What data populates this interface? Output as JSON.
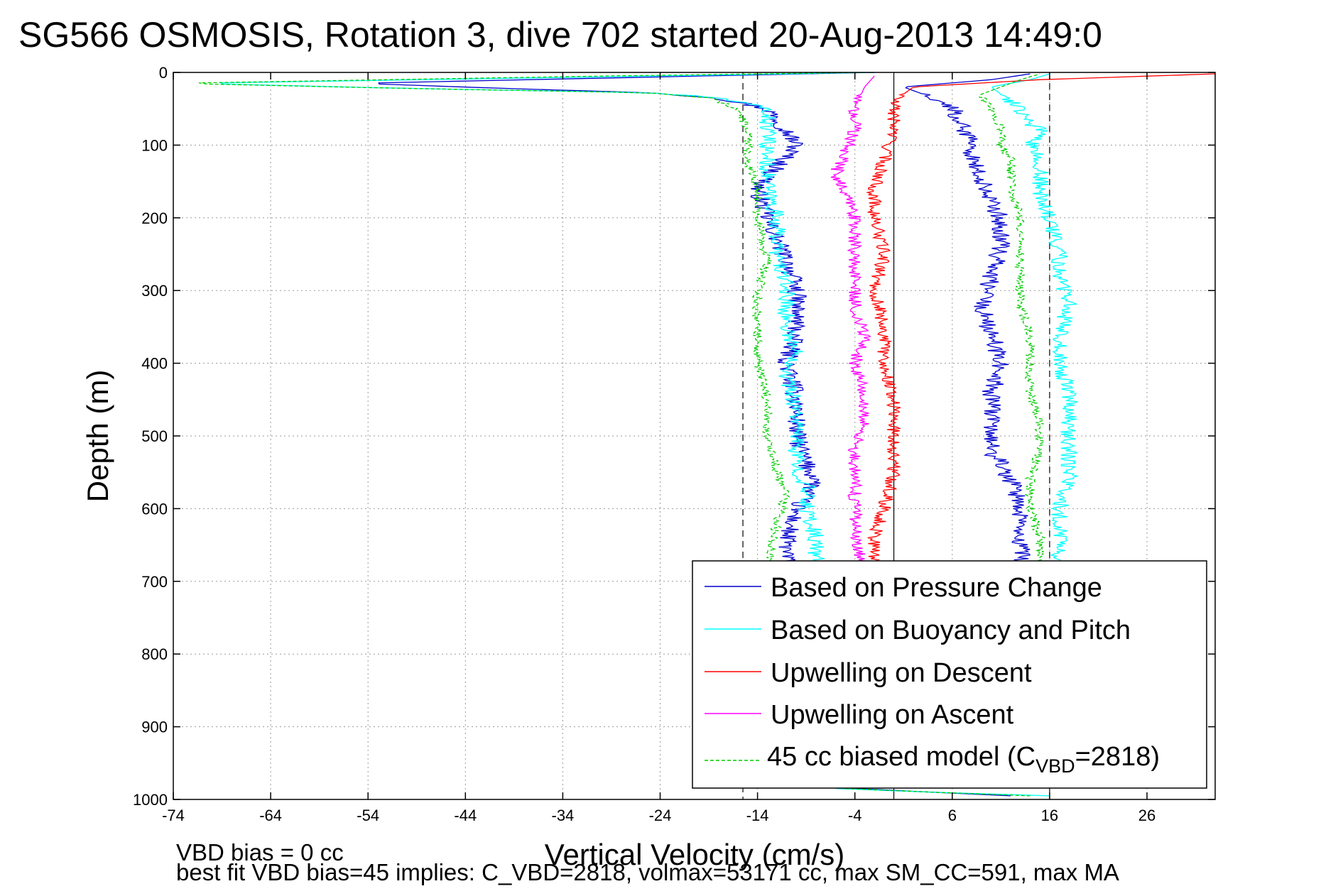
{
  "chart_data": {
    "type": "line",
    "title": "SG566 OSMOSIS, Rotation 3, dive 702 started 20-Aug-2013 14:49:0",
    "xlabel": "Vertical Velocity (cm/s)",
    "ylabel": "Depth (m)",
    "xlim": [
      -74,
      33
    ],
    "ylim": [
      0,
      1000
    ],
    "y_reversed": true,
    "grid": true,
    "x_ticks": [
      -74,
      -64,
      -54,
      -44,
      -34,
      -24,
      -14,
      -4,
      6,
      16,
      26
    ],
    "y_ticks": [
      0,
      100,
      200,
      300,
      400,
      500,
      600,
      700,
      800,
      900,
      1000
    ],
    "vertical_reference_lines": [
      {
        "x": -15.5,
        "style": "dashed"
      },
      {
        "x": 0,
        "style": "solid"
      },
      {
        "x": 16,
        "style": "dashed"
      }
    ],
    "legend_position": "bottom-right",
    "series": [
      {
        "name": "Based on Pressure Change",
        "color": "#0000cc",
        "style": "solid",
        "noise": 1.0,
        "segments": [
          {
            "depth": [
              0,
              5,
              15,
              22,
              28,
              35,
              50,
              80,
              100,
              130,
              160,
              200,
              260,
              300,
              350,
              400,
              450,
              500,
              540,
              560,
              600,
              640,
              680
            ],
            "x": [
              -2,
              -20,
              -55,
              -40,
              -25,
              -18,
              -13,
              -11,
              -10,
              -12,
              -14,
              -13,
              -11,
              -10,
              -10,
              -11,
              -10,
              -10,
              -9,
              -8,
              -10,
              -11,
              -11
            ]
          },
          {
            "depth": [
              680,
              640,
              600,
              560,
              520,
              480,
              440,
              400,
              360,
              320,
              280,
              240,
              200,
              180,
              150,
              120,
              100,
              70,
              50,
              30,
              20,
              10,
              2
            ],
            "x": [
              13,
              13,
              13,
              12,
              10,
              10,
              10,
              11,
              10,
              9,
              10,
              11,
              11,
              10,
              9,
              8,
              8,
              7,
              6,
              3,
              1,
              10,
              14
            ]
          },
          {
            "depth": [
              985,
              990,
              995
            ],
            "x": [
              -4,
              4,
              12
            ]
          }
        ]
      },
      {
        "name": "Based on Buoyancy and Pitch",
        "color": "#00ffff",
        "style": "solid",
        "noise": 0.9,
        "segments": [
          {
            "depth": [
              0,
              5,
              15,
              22,
              28,
              35,
              50,
              80,
              100,
              130,
              160,
              200,
              250,
              300,
              350,
              390,
              420,
              460,
              500,
              540,
              570,
              600,
              640,
              680
            ],
            "x": [
              -2,
              -25,
              -72,
              -50,
              -25,
              -18,
              -13,
              -13,
              -13,
              -13,
              -13,
              -12,
              -12,
              -11,
              -11,
              -10,
              -11,
              -10,
              -10,
              -10,
              -9,
              -9,
              -8,
              -8
            ]
          },
          {
            "depth": [
              680,
              640,
              600,
              560,
              520,
              480,
              440,
              400,
              360,
              320,
              280,
              240,
              200,
              160,
              120,
              100,
              80,
              60,
              50,
              30,
              20,
              10,
              2
            ],
            "x": [
              17,
              17,
              17,
              18,
              18,
              18,
              18,
              17,
              17,
              18,
              17,
              17,
              16,
              15,
              15,
              14,
              15,
              13,
              13,
              11,
              10,
              14,
              16
            ]
          },
          {
            "depth": [
              985,
              990,
              995
            ],
            "x": [
              -6,
              4,
              16
            ]
          }
        ]
      },
      {
        "name": "Upwelling on Descent",
        "color": "#ff0000",
        "style": "solid",
        "noise": 0.7,
        "segments": [
          {
            "depth": [
              2,
              10,
              20,
              40,
              80,
              120,
              160,
              200,
              250,
              300,
              350,
              400,
              450,
              500,
              550,
              600,
              640,
              680
            ],
            "x": [
              33,
              15,
              2,
              0,
              0,
              -1,
              -2,
              -2,
              -1,
              -2,
              -1,
              -1,
              0,
              0,
              0,
              -1,
              -2,
              -2
            ]
          }
        ]
      },
      {
        "name": "Upwelling on Ascent",
        "color": "#ff00ff",
        "style": "solid",
        "noise": 0.7,
        "segments": [
          {
            "depth": [
              680,
              640,
              600,
              560,
              520,
              480,
              440,
              400,
              360,
              320,
              280,
              240,
              200,
              170,
              140,
              110,
              80,
              50,
              20,
              5
            ],
            "x": [
              -3,
              -4,
              -4,
              -4,
              -4,
              -3,
              -3,
              -4,
              -3,
              -4,
              -4,
              -4,
              -4,
              -5,
              -6,
              -5,
              -4,
              -4,
              -3,
              -2
            ]
          }
        ]
      },
      {
        "name": "45 cc biased model (C",
        "name_sub": "VBD",
        "name_suffix": "=2818)",
        "color": "#00cc00",
        "style": "dashed",
        "noise": 0.5,
        "segments": [
          {
            "depth": [
              0,
              5,
              15,
              22,
              28,
              35,
              50,
              80,
              120,
              160,
              200,
              260,
              300,
              350,
              400,
              450,
              500,
              550,
              580,
              620,
              680
            ],
            "x": [
              -3,
              -30,
              -74,
              -50,
              -25,
              -19,
              -16,
              -15,
              -15,
              -14,
              -14,
              -13,
              -14,
              -14,
              -14,
              -13,
              -13,
              -12,
              -11,
              -12,
              -13
            ]
          },
          {
            "depth": [
              680,
              640,
              600,
              560,
              520,
              480,
              440,
              400,
              360,
              320,
              280,
              240,
              200,
              160,
              120,
              100,
              80,
              50,
              30,
              10,
              2
            ],
            "x": [
              15,
              15,
              14,
              14,
              15,
              15,
              14,
              14,
              14,
              13,
              13,
              13,
              13,
              12,
              12,
              11,
              11,
              10,
              9,
              13,
              15
            ]
          },
          {
            "depth": [
              985,
              990,
              995
            ],
            "x": [
              -5,
              4,
              14
            ]
          }
        ]
      }
    ]
  },
  "footer": {
    "line1": "VBD bias = 0 cc",
    "line2": "best fit VBD bias=45 implies: C_VBD=2818, volmax=53171 cc, max SM_CC=591, max MA"
  }
}
